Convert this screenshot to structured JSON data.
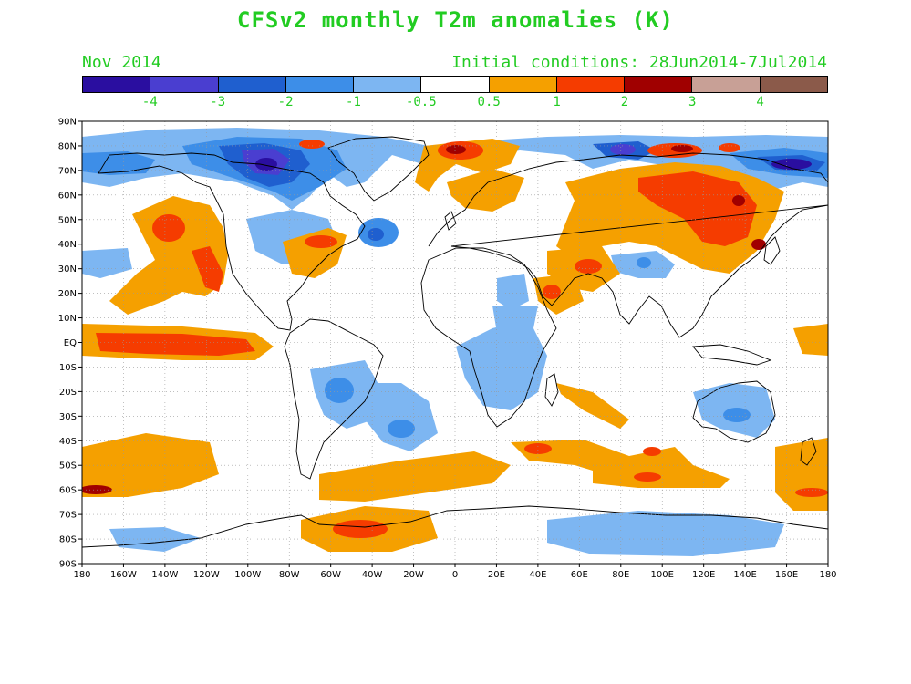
{
  "header": {
    "title": "CFSv2 monthly T2m anomalies (K)",
    "month": "Nov 2014",
    "initial_conditions": "Initial conditions: 28Jun2014-7Jul2014",
    "text_color": "#22cc22"
  },
  "colorbar": {
    "colors": [
      "#2a0ea0",
      "#4a3ed0",
      "#1f5fcf",
      "#3d8ee8",
      "#7db6f2",
      "#ffffff",
      "#f5a000",
      "#f53c00",
      "#a00000",
      "#c8a096",
      "#8b5a4a"
    ],
    "labels": [
      "-4",
      "-3",
      "-2",
      "-1",
      "-0.5",
      "0.5",
      "1",
      "2",
      "3",
      "4"
    ]
  },
  "map": {
    "lat_labels": [
      "90N",
      "80N",
      "70N",
      "60N",
      "50N",
      "40N",
      "30N",
      "20N",
      "10N",
      "EQ",
      "10S",
      "20S",
      "30S",
      "40S",
      "50S",
      "60S",
      "70S",
      "80S",
      "90S"
    ],
    "lon_labels": [
      "180",
      "160W",
      "140W",
      "120W",
      "100W",
      "80W",
      "60W",
      "40W",
      "20W",
      "0",
      "20E",
      "40E",
      "60E",
      "80E",
      "100E",
      "120E",
      "140E",
      "160E",
      "180"
    ],
    "grid_color": "#999999"
  }
}
